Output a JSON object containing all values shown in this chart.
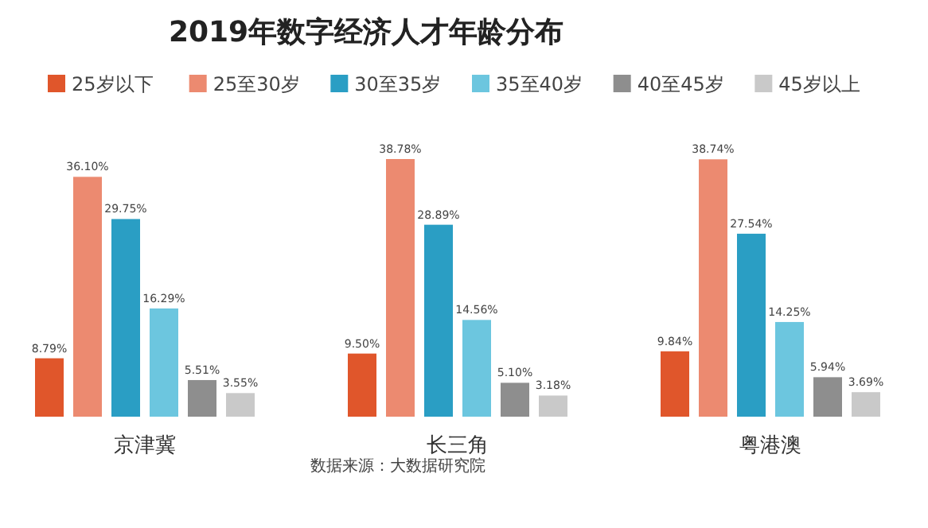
{
  "chart_data": {
    "type": "bar",
    "title": "2019年数字经济人才年龄分布",
    "categories": [
      "京津冀",
      "长三角",
      "粤港澳"
    ],
    "legend": "top",
    "annotations": [
      "数据来源：大数据研究院"
    ],
    "series": [
      {
        "name": "25岁以下",
        "color": "#e0562b",
        "values": [
          8.79,
          9.5,
          9.84
        ],
        "value_labels": [
          "8.79%",
          "9.50%",
          "9.84%"
        ]
      },
      {
        "name": "25至30岁",
        "color": "#ec8a70",
        "values": [
          36.1,
          38.78,
          38.74
        ],
        "value_labels": [
          "36.10%",
          "38.78%",
          "38.74%"
        ]
      },
      {
        "name": "30至35岁",
        "color": "#2a9ec4",
        "values": [
          29.75,
          28.89,
          27.54
        ],
        "value_labels": [
          "29.75%",
          "28.89%",
          "27.54%"
        ]
      },
      {
        "name": "35至40岁",
        "color": "#6cc6df",
        "values": [
          16.29,
          14.56,
          14.25
        ],
        "value_labels": [
          "16.29%",
          "14.56%",
          "14.25%"
        ]
      },
      {
        "name": "40至45岁",
        "color": "#8e8e8e",
        "values": [
          5.51,
          5.1,
          5.94
        ],
        "value_labels": [
          "5.51%",
          "5.10%",
          "5.94%"
        ]
      },
      {
        "name": "45岁以上",
        "color": "#c9c9c9",
        "values": [
          3.55,
          3.18,
          3.69
        ],
        "value_labels": [
          "3.55%",
          "3.18%",
          "3.69%"
        ]
      }
    ]
  }
}
